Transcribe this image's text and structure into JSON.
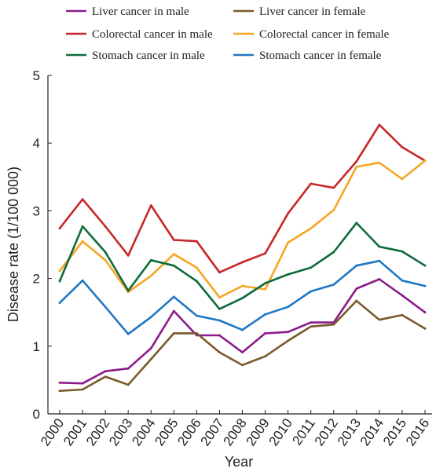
{
  "chart_data": {
    "type": "line",
    "title": "",
    "xlabel": "Year",
    "ylabel": "Disease rate (1/100 000)",
    "x": [
      "2000",
      "2001",
      "2002",
      "2003",
      "2004",
      "2005",
      "2006",
      "2007",
      "2008",
      "2009",
      "2010",
      "2011",
      "2012",
      "2013",
      "2014",
      "2015",
      "2016"
    ],
    "yticks": [
      "0",
      "1",
      "2",
      "3",
      "4",
      "5"
    ],
    "ylim": [
      0,
      5
    ],
    "grid": false,
    "legend_position": "top",
    "series": [
      {
        "name": "Liver cancer in male",
        "color": "#8b1a8b",
        "values": [
          0.46,
          0.45,
          0.63,
          0.67,
          0.97,
          1.52,
          1.16,
          1.16,
          0.91,
          1.19,
          1.21,
          1.35,
          1.35,
          1.85,
          1.99,
          1.75,
          1.5
        ]
      },
      {
        "name": "Liver cancer in female",
        "color": "#7a5a2a",
        "values": [
          0.34,
          0.36,
          0.55,
          0.43,
          0.81,
          1.19,
          1.19,
          0.91,
          0.72,
          0.85,
          1.08,
          1.29,
          1.32,
          1.67,
          1.39,
          1.46,
          1.26
        ]
      },
      {
        "name": "Colorectal cancer in male",
        "color": "#c62828",
        "values": [
          2.74,
          3.17,
          2.77,
          2.34,
          3.08,
          2.57,
          2.55,
          2.09,
          2.24,
          2.37,
          2.96,
          3.4,
          3.34,
          3.73,
          4.27,
          3.94,
          3.74
        ]
      },
      {
        "name": "Colorectal cancer in female",
        "color": "#f5a623",
        "values": [
          2.11,
          2.55,
          2.27,
          1.8,
          2.04,
          2.36,
          2.16,
          1.72,
          1.89,
          1.84,
          2.53,
          2.74,
          3.01,
          3.65,
          3.71,
          3.47,
          3.74
        ]
      },
      {
        "name": "Stomach cancer in male",
        "color": "#0e6b3a",
        "values": [
          1.96,
          2.77,
          2.39,
          1.82,
          2.27,
          2.19,
          1.96,
          1.55,
          1.71,
          1.93,
          2.06,
          2.16,
          2.39,
          2.82,
          2.47,
          2.4,
          2.19
        ]
      },
      {
        "name": "Stomach cancer in female",
        "color": "#1f77c4",
        "values": [
          1.64,
          1.97,
          1.58,
          1.18,
          1.43,
          1.73,
          1.45,
          1.38,
          1.24,
          1.47,
          1.58,
          1.81,
          1.91,
          2.19,
          2.26,
          1.97,
          1.89
        ]
      }
    ]
  }
}
